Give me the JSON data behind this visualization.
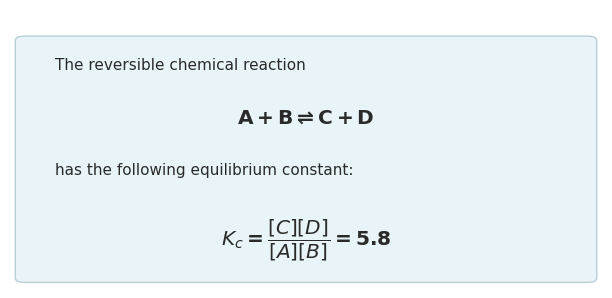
{
  "background_color": "#dce9f0",
  "box_bg_color": "#e8f4f8",
  "border_color": "#b8ced8",
  "text_color": "#2a2a2a",
  "line1": "The reversible chemical reaction",
  "line2_latex": "$\\mathbf{A + B \\rightleftharpoons C + D}$",
  "line3": "has the following equilibrium constant:",
  "line4_latex": "$\\boldsymbol{K_c = \\dfrac{[C][D]}{[A][B]} = 5.8}$",
  "font_size_text": 11.0,
  "font_size_eq1": 14.5,
  "font_size_eq2": 14.5,
  "fig_width": 6.12,
  "fig_height": 2.98,
  "dpi": 100
}
